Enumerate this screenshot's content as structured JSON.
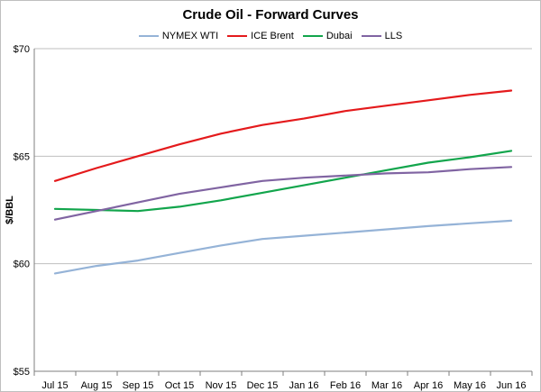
{
  "chart_data": {
    "type": "line",
    "title": "Crude Oil - Forward Curves",
    "xlabel": "",
    "ylabel": "$/BBL",
    "ylim": [
      55,
      70
    ],
    "yticks": [
      "$55",
      "$60",
      "$65",
      "$70"
    ],
    "ytick_values": [
      55,
      60,
      65,
      70
    ],
    "grid": "horizontal",
    "legend_position": "top",
    "categories": [
      "Jul 15",
      "Aug 15",
      "Sep 15",
      "Oct 15",
      "Nov 15",
      "Dec 15",
      "Jan 16",
      "Feb 16",
      "Mar 16",
      "Apr 16",
      "May 16",
      "Jun 16"
    ],
    "series": [
      {
        "name": "NYMEX WTI",
        "color": "#95b3d7",
        "values": [
          59.55,
          59.9,
          60.15,
          60.5,
          60.85,
          61.15,
          61.3,
          61.45,
          61.6,
          61.75,
          61.88,
          62.0
        ]
      },
      {
        "name": "ICE Brent",
        "color": "#e41a1c",
        "values": [
          63.85,
          64.45,
          65.0,
          65.55,
          66.05,
          66.45,
          66.75,
          67.1,
          67.35,
          67.6,
          67.85,
          68.05
        ]
      },
      {
        "name": "Dubai",
        "color": "#12a54c",
        "values": [
          62.55,
          62.5,
          62.45,
          62.65,
          62.95,
          63.3,
          63.65,
          64.0,
          64.35,
          64.7,
          64.95,
          65.25
        ]
      },
      {
        "name": "LLS",
        "color": "#8064a2",
        "values": [
          62.05,
          62.45,
          62.85,
          63.25,
          63.55,
          63.85,
          64.0,
          64.1,
          64.2,
          64.25,
          64.4,
          64.5
        ]
      }
    ]
  }
}
